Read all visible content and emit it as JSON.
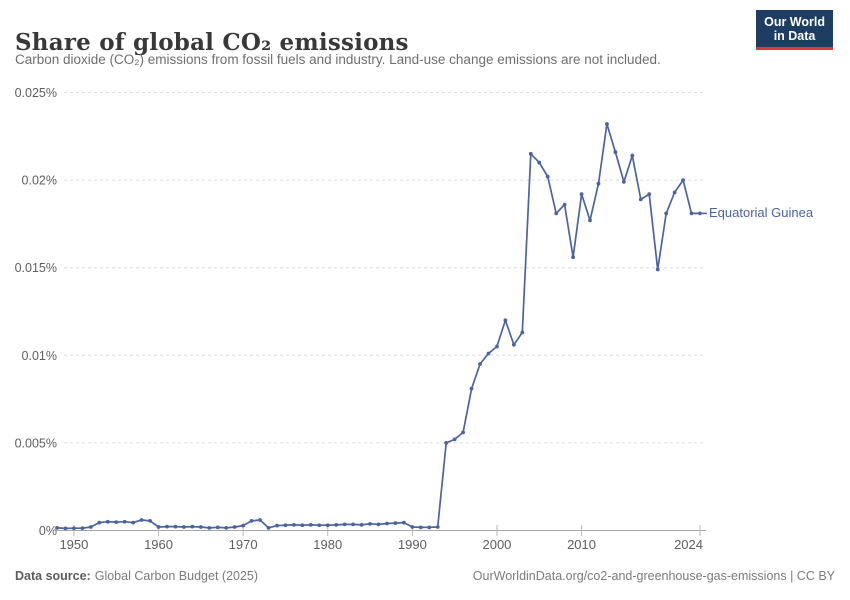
{
  "header": {
    "title": "Share of global CO₂ emissions",
    "subtitle": "Carbon dioxide (CO₂) emissions from fossil fuels and industry. Land-use change emissions are not included."
  },
  "logo": {
    "line1": "Our World",
    "line2": "in Data",
    "bg_color": "#1d3d63",
    "accent_color": "#d93a40"
  },
  "chart_data": {
    "type": "line",
    "title": "Share of global CO₂ emissions",
    "xlabel": "",
    "ylabel": "",
    "xlim": [
      1948,
      2024
    ],
    "ylim": [
      0,
      0.025
    ],
    "grid": "dashed-horizontal",
    "legend_position": "end-of-line",
    "x_ticks": [
      1950,
      1960,
      1970,
      1980,
      1990,
      2000,
      2010,
      2024
    ],
    "x_tick_labels": [
      "1950",
      "1960",
      "1970",
      "1980",
      "1990",
      "2000",
      "2010",
      "2024"
    ],
    "y_ticks": [
      0,
      0.005,
      0.01,
      0.015,
      0.02,
      0.025
    ],
    "y_tick_labels": [
      "0%",
      "0.005%",
      "0.01%",
      "0.015%",
      "0.02%",
      "0.025%"
    ],
    "series": [
      {
        "name": "Equatorial Guinea",
        "color": "#4b639e",
        "years": [
          1948,
          1949,
          1950,
          1951,
          1952,
          1953,
          1954,
          1955,
          1956,
          1957,
          1958,
          1959,
          1960,
          1961,
          1962,
          1963,
          1964,
          1965,
          1966,
          1967,
          1968,
          1969,
          1970,
          1971,
          1972,
          1973,
          1974,
          1975,
          1976,
          1977,
          1978,
          1979,
          1980,
          1981,
          1982,
          1983,
          1984,
          1985,
          1986,
          1987,
          1988,
          1989,
          1990,
          1991,
          1992,
          1993,
          1994,
          1995,
          1996,
          1997,
          1998,
          1999,
          2000,
          2001,
          2002,
          2003,
          2004,
          2005,
          2006,
          2007,
          2008,
          2009,
          2010,
          2011,
          2012,
          2013,
          2014,
          2015,
          2016,
          2017,
          2018,
          2019,
          2020,
          2021,
          2022,
          2023,
          2024
        ],
        "values": [
          0.00015,
          0.00012,
          0.00013,
          0.00013,
          0.0002,
          0.00045,
          0.0005,
          0.00048,
          0.0005,
          0.00045,
          0.0006,
          0.00055,
          0.0002,
          0.00022,
          0.00022,
          0.0002,
          0.00022,
          0.0002,
          0.00015,
          0.00018,
          0.00015,
          0.0002,
          0.00028,
          0.00055,
          0.0006,
          0.00015,
          0.00028,
          0.0003,
          0.00032,
          0.0003,
          0.00032,
          0.0003,
          0.0003,
          0.00032,
          0.00035,
          0.00035,
          0.00032,
          0.00038,
          0.00035,
          0.0004,
          0.00042,
          0.00045,
          0.0002,
          0.00018,
          0.00018,
          0.0002,
          0.005,
          0.0052,
          0.0056,
          0.0081,
          0.0095,
          0.0101,
          0.0105,
          0.012,
          0.0106,
          0.0113,
          0.0215,
          0.021,
          0.0202,
          0.0181,
          0.0186,
          0.0156,
          0.0192,
          0.0177,
          0.0198,
          0.0232,
          0.0216,
          0.0199,
          0.0214,
          0.0189,
          0.0192,
          0.0149,
          0.0181,
          0.0193,
          0.02,
          0.0181,
          0.0181
        ]
      }
    ]
  },
  "footer": {
    "source_label": "Data source:",
    "source_value": "Global Carbon Budget (2025)",
    "credit": "OurWorldinData.org/co2-and-greenhouse-gas-emissions | CC BY"
  }
}
